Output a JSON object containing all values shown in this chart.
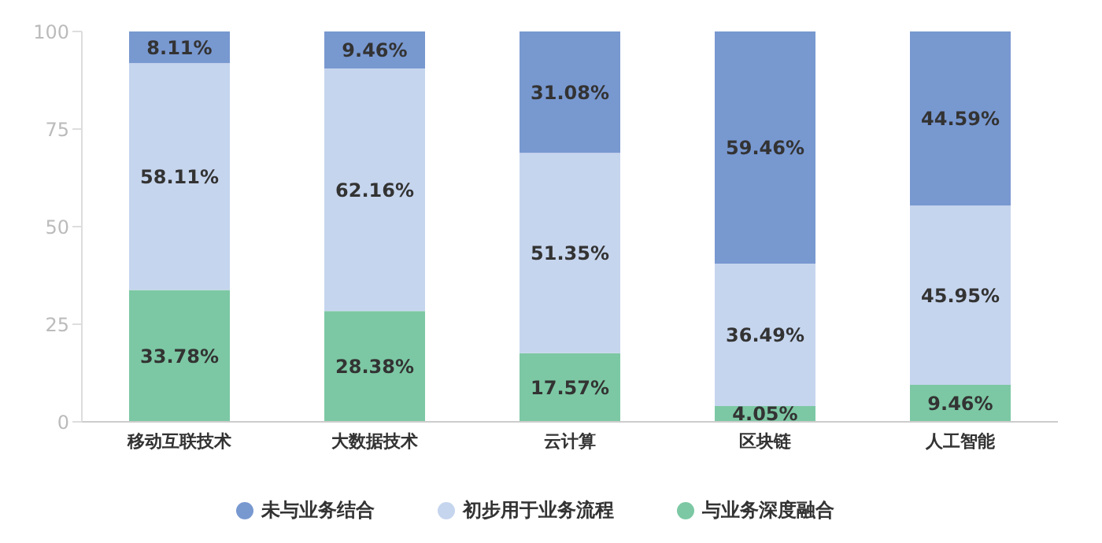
{
  "chart_data": {
    "type": "bar",
    "stacked": true,
    "categories": [
      "移动互联技术",
      "大数据技术",
      "云计算",
      "区块链",
      "人工智能"
    ],
    "series": [
      {
        "name": "与业务深度融合",
        "color": "#7cc8a4",
        "values": [
          33.78,
          28.38,
          17.57,
          4.05,
          9.46
        ],
        "value_labels": [
          "33.78%",
          "28.38%",
          "17.57%",
          "4.05%",
          "9.46%"
        ]
      },
      {
        "name": "初步用于业务流程",
        "color": "#c6d5ee",
        "values": [
          58.11,
          62.16,
          51.35,
          36.49,
          45.95
        ],
        "value_labels": [
          "58.11%",
          "62.16%",
          "51.35%",
          "36.49%",
          "45.95%"
        ]
      },
      {
        "name": "未与业务结合",
        "color": "#7898d0",
        "values": [
          8.11,
          9.46,
          31.08,
          59.46,
          44.59
        ],
        "value_labels": [
          "8.11%",
          "9.46%",
          "31.08%",
          "59.46%",
          "44.59%"
        ]
      }
    ],
    "ylim": [
      0,
      100
    ],
    "yticks": [
      0,
      25,
      50,
      75,
      100
    ],
    "grid": false,
    "legend": "bottom"
  }
}
